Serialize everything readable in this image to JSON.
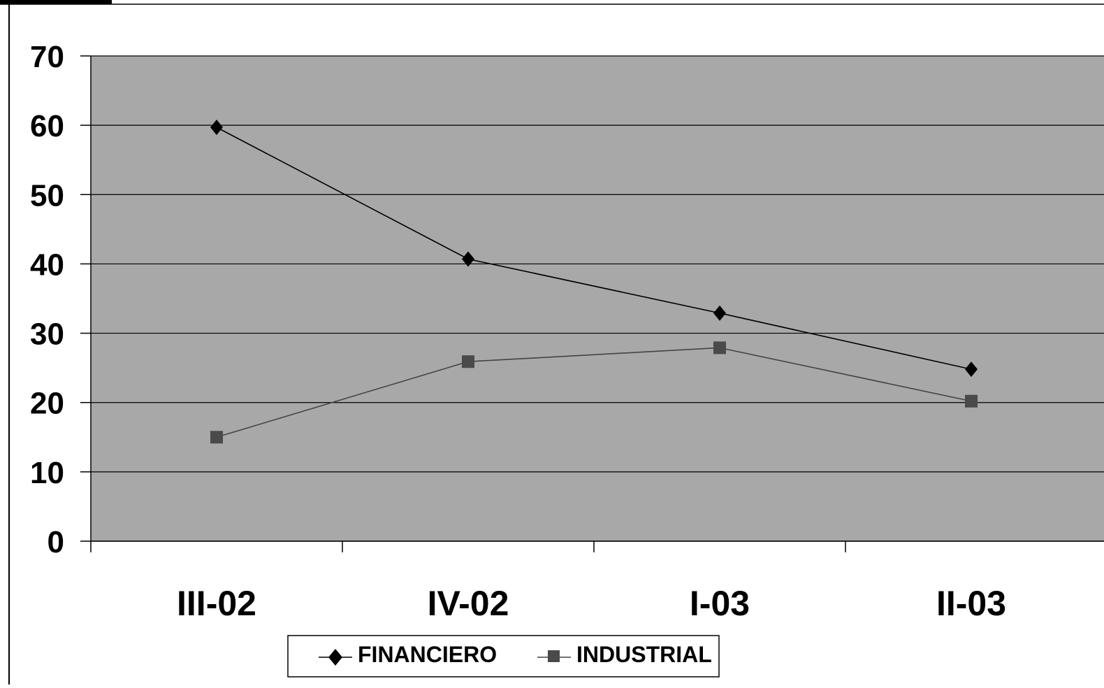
{
  "colors": {
    "plot_background": "#a8a8a8",
    "gridline": "#000000",
    "financiero_line": "#000000",
    "financiero_marker": "#000000",
    "industrial_line": "#444444",
    "industrial_marker": "#4a4a4a"
  },
  "chart_data": {
    "type": "line",
    "title": "",
    "xlabel": "",
    "ylabel": "",
    "categories": [
      "III-02",
      "IV-02",
      "I-03",
      "II-03"
    ],
    "ylim": [
      0,
      70
    ],
    "yticks": [
      "0",
      "10",
      "20",
      "30",
      "40",
      "50",
      "60",
      "70"
    ],
    "grid": true,
    "legend_position": "bottom",
    "series": [
      {
        "name": "FINANCIERO",
        "marker": "diamond",
        "values": [
          59.7,
          40.7,
          32.9,
          24.8
        ]
      },
      {
        "name": "INDUSTRIAL",
        "marker": "square",
        "values": [
          15.0,
          25.9,
          27.9,
          20.2
        ]
      }
    ]
  }
}
